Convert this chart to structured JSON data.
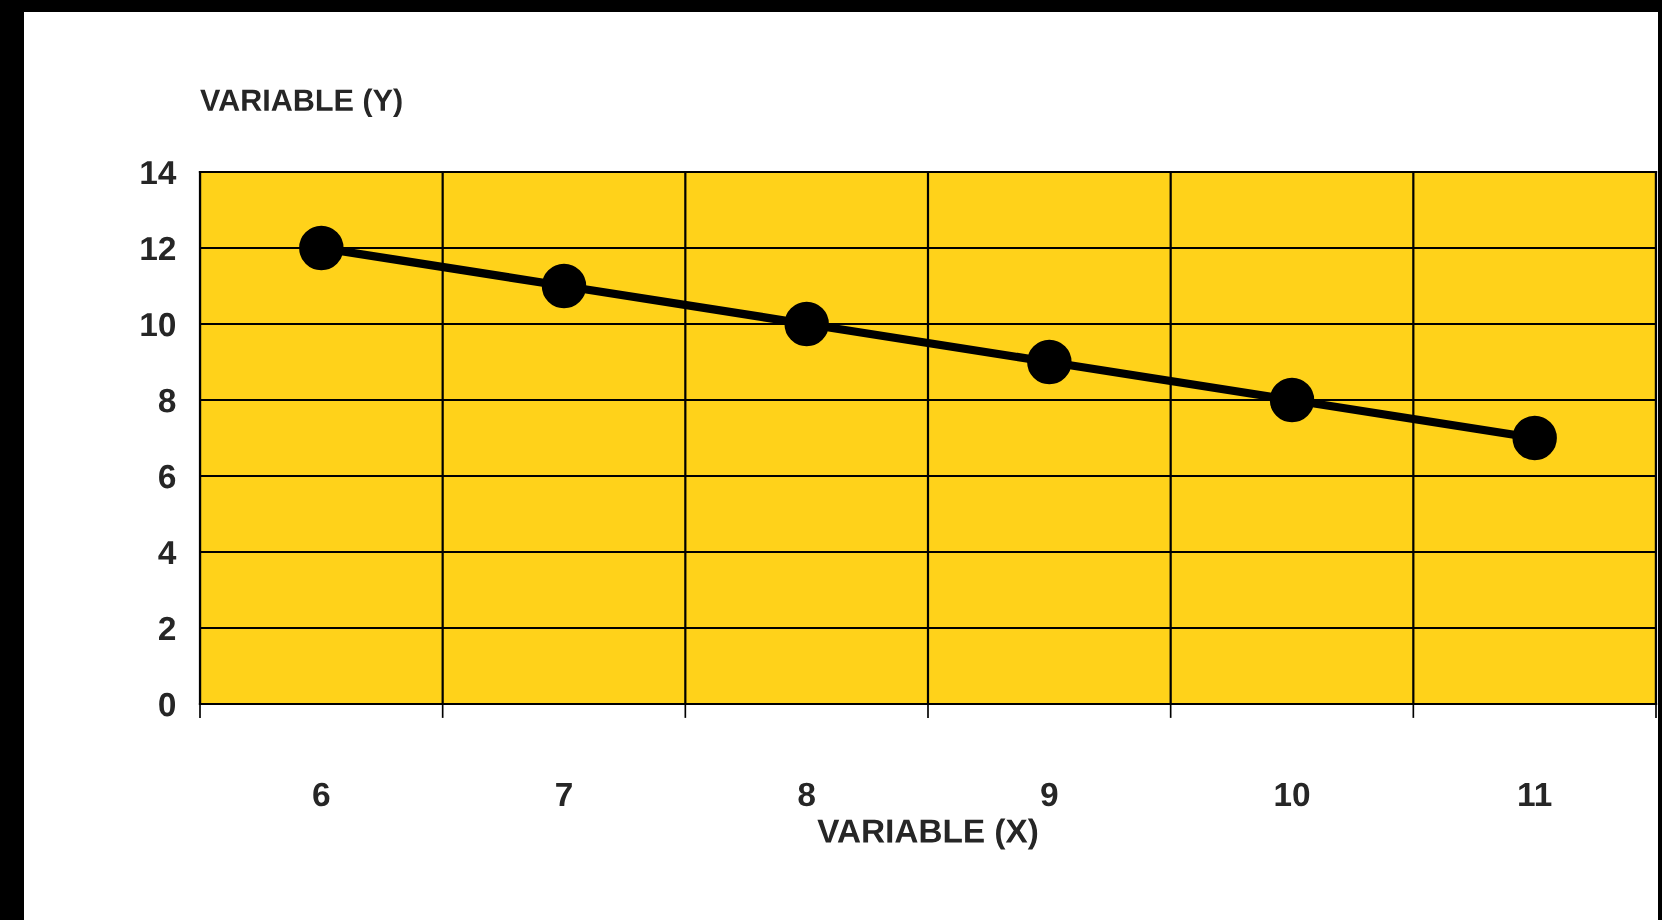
{
  "chart_data": {
    "type": "line",
    "xlabel": "VARIABLE (X)",
    "ylabel": "VARIABLE (Y)",
    "categories": [
      "6",
      "7",
      "8",
      "9",
      "10",
      "11"
    ],
    "series": [
      {
        "color": "#000000",
        "values": [
          12,
          11,
          10,
          9,
          8,
          7
        ]
      }
    ],
    "ylim": [
      0,
      14
    ],
    "yticks": [
      0,
      2,
      4,
      6,
      8,
      10,
      12,
      14
    ],
    "grid": true,
    "marker": "circle",
    "line_style": "solid"
  }
}
